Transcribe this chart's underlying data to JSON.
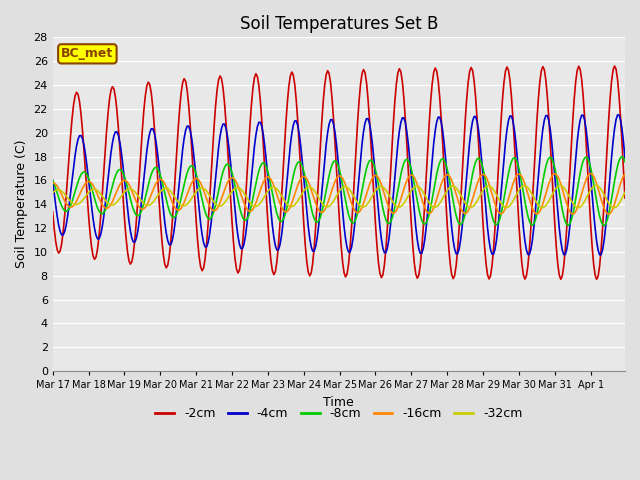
{
  "title": "Soil Temperatures Set B",
  "xlabel": "Time",
  "ylabel": "Soil Temperature (C)",
  "ylim": [
    0,
    28
  ],
  "yticks": [
    0,
    2,
    4,
    6,
    8,
    10,
    12,
    14,
    16,
    18,
    20,
    22,
    24,
    26,
    28
  ],
  "line_colors": {
    "-2cm": "#cc0000",
    "-4cm": "#0000cc",
    "-8cm": "#00cc00",
    "-16cm": "#ff8800",
    "-32cm": "#cccc00"
  },
  "legend_labels": [
    "-2cm",
    "-4cm",
    "-8cm",
    "-16cm",
    "-32cm"
  ],
  "annotation_text": "BC_met",
  "annotation_bg": "#ffff00",
  "annotation_border": "#884400",
  "bg_color": "#e0e0e0",
  "plot_bg_color": "#e8e8e8",
  "tick_dates": [
    "Mar 17",
    "Mar 18",
    "Mar 19",
    "Mar 20",
    "Mar 21",
    "Mar 22",
    "Mar 23",
    "Mar 24",
    "Mar 25",
    "Mar 26",
    "Mar 27",
    "Mar 28",
    "Mar 29",
    "Mar 30",
    "Mar 31",
    "Apr 1"
  ],
  "linewidth": 1.2
}
